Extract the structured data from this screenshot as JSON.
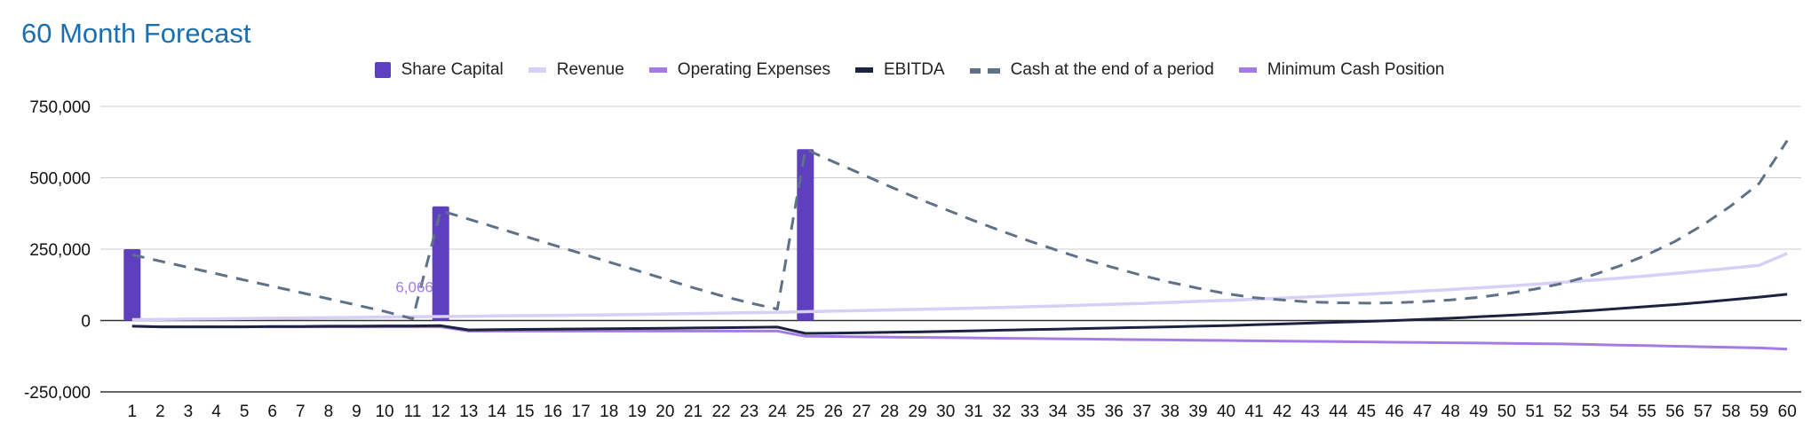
{
  "title": "60 Month Forecast",
  "colors": {
    "title": "#1a6fb0",
    "share_capital": "#5e3fbe",
    "revenue": "#d7cff5",
    "operating_expenses": "#a47be3",
    "ebitda": "#1c2340",
    "cash": "#5f7188",
    "min_cash": "#a47be3",
    "grid": "#cccccc",
    "zero_line": "#333333"
  },
  "legend": [
    {
      "label": "Share Capital",
      "style": "box",
      "color": "#5e3fbe"
    },
    {
      "label": "Revenue",
      "style": "line",
      "color": "#d7cff5"
    },
    {
      "label": "Operating Expenses",
      "style": "line",
      "color": "#a47be3"
    },
    {
      "label": "EBITDA",
      "style": "line",
      "color": "#1c2340"
    },
    {
      "label": "Cash at the end of a period",
      "style": "dashed",
      "color": "#5f7188"
    },
    {
      "label": "Minimum Cash Position",
      "style": "line",
      "color": "#a47be3"
    }
  ],
  "chart_data": {
    "type": "bar",
    "title": "60 Month Forecast",
    "x": [
      1,
      2,
      3,
      4,
      5,
      6,
      7,
      8,
      9,
      10,
      11,
      12,
      13,
      14,
      15,
      16,
      17,
      18,
      19,
      20,
      21,
      22,
      23,
      24,
      25,
      26,
      27,
      28,
      29,
      30,
      31,
      32,
      33,
      34,
      35,
      36,
      37,
      38,
      39,
      40,
      41,
      42,
      43,
      44,
      45,
      46,
      47,
      48,
      49,
      50,
      51,
      52,
      53,
      54,
      55,
      56,
      57,
      58,
      59,
      60
    ],
    "ylim": [
      -250000,
      750000
    ],
    "yticks": [
      -250000,
      0,
      250000,
      500000,
      750000
    ],
    "ytick_labels": [
      "-250,000",
      "0",
      "250,000",
      "500,000",
      "750,000"
    ],
    "grid": true,
    "legend_position": "top",
    "annotations": [
      {
        "x": 11,
        "y": 6066,
        "text": "6,066"
      }
    ],
    "series": [
      {
        "name": "Share Capital",
        "type": "bar",
        "values": [
          250000,
          0,
          0,
          0,
          0,
          0,
          0,
          0,
          0,
          0,
          0,
          400000,
          0,
          0,
          0,
          0,
          0,
          0,
          0,
          0,
          0,
          0,
          0,
          0,
          600000,
          0,
          0,
          0,
          0,
          0,
          0,
          0,
          0,
          0,
          0,
          0,
          0,
          0,
          0,
          0,
          0,
          0,
          0,
          0,
          0,
          0,
          0,
          0,
          0,
          0,
          0,
          0,
          0,
          0,
          0,
          0,
          0,
          0,
          0,
          0
        ]
      },
      {
        "name": "Revenue",
        "type": "line",
        "values": [
          3000,
          4000,
          5000,
          6000,
          7000,
          8000,
          9000,
          10000,
          11000,
          12000,
          13000,
          14000,
          15000,
          16000,
          17000,
          18000,
          19000,
          20000,
          21500,
          23000,
          24500,
          26000,
          27500,
          29000,
          31000,
          33000,
          35000,
          37000,
          39000,
          41000,
          43500,
          46000,
          48500,
          51000,
          54000,
          57000,
          60000,
          63500,
          67000,
          70500,
          74500,
          78500,
          83000,
          87500,
          92500,
          97500,
          103000,
          108500,
          114500,
          120500,
          127000,
          134000,
          141000,
          148500,
          156500,
          165000,
          174000,
          183500,
          193500,
          235000
        ]
      },
      {
        "name": "Operating Expenses",
        "type": "line",
        "values": [
          -20000,
          -22000,
          -22000,
          -22000,
          -22000,
          -22000,
          -22000,
          -22000,
          -22000,
          -22000,
          -22000,
          -22000,
          -37000,
          -37000,
          -37000,
          -37000,
          -37000,
          -37000,
          -37000,
          -37000,
          -37000,
          -37000,
          -37000,
          -37000,
          -55000,
          -56000,
          -57000,
          -58000,
          -59000,
          -60000,
          -61000,
          -62000,
          -63000,
          -64000,
          -65000,
          -66000,
          -67000,
          -68000,
          -69000,
          -70000,
          -71000,
          -72000,
          -73000,
          -74000,
          -75000,
          -76000,
          -77000,
          -78000,
          -79000,
          -80000,
          -81000,
          -82000,
          -84000,
          -86000,
          -88000,
          -90000,
          -92000,
          -94000,
          -96000,
          -100000
        ]
      },
      {
        "name": "EBITDA",
        "type": "line",
        "values": [
          -20000,
          -22000,
          -22000,
          -22000,
          -22000,
          -21000,
          -21000,
          -20000,
          -20000,
          -19000,
          -19000,
          -18000,
          -33000,
          -32000,
          -31000,
          -30000,
          -29500,
          -29000,
          -28000,
          -27000,
          -26000,
          -25000,
          -24000,
          -23000,
          -45000,
          -44000,
          -43000,
          -41000,
          -40000,
          -38000,
          -36000,
          -34000,
          -32000,
          -30000,
          -28000,
          -26000,
          -24000,
          -22000,
          -20000,
          -18000,
          -15000,
          -12000,
          -9000,
          -6000,
          -3000,
          0,
          4000,
          8000,
          13000,
          18000,
          23000,
          29000,
          35000,
          42000,
          49000,
          56000,
          64000,
          73000,
          82000,
          92000
        ]
      },
      {
        "name": "Cash at the end of a period",
        "type": "line",
        "dashed": true,
        "values": [
          230000,
          208000,
          186000,
          164000,
          142000,
          120000,
          98000,
          76000,
          54000,
          32000,
          6066,
          385000,
          355000,
          325000,
          295000,
          265000,
          235000,
          205000,
          175000,
          145000,
          115000,
          87000,
          62000,
          40000,
          600000,
          556000,
          513000,
          470000,
          428000,
          389000,
          350000,
          313000,
          278000,
          245000,
          213000,
          185000,
          158000,
          134000,
          113000,
          94000,
          80000,
          72000,
          65000,
          62000,
          61000,
          62000,
          66000,
          72000,
          81000,
          94000,
          110000,
          130000,
          157000,
          190000,
          230000,
          277000,
          335000,
          402000,
          480000,
          630000
        ]
      },
      {
        "name": "Minimum Cash Position",
        "type": "line",
        "values": [
          0,
          0,
          0,
          0,
          0,
          0,
          0,
          0,
          0,
          0,
          0,
          0,
          0,
          0,
          0,
          0,
          0,
          0,
          0,
          0,
          0,
          0,
          0,
          0,
          0,
          0,
          0,
          0,
          0,
          0,
          0,
          0,
          0,
          0,
          0,
          0,
          0,
          0,
          0,
          0,
          0,
          0,
          0,
          0,
          0,
          0,
          0,
          0,
          0,
          0,
          0,
          0,
          0,
          0,
          0,
          0,
          0,
          0,
          0,
          0
        ]
      }
    ]
  }
}
